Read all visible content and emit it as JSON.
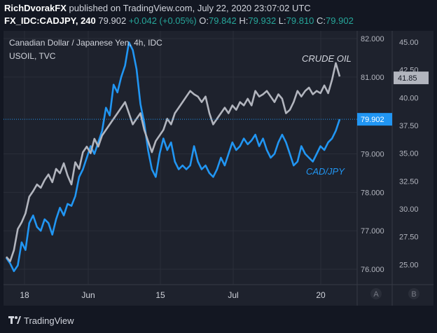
{
  "header": {
    "author": "RichDvorakFX",
    "published_text": "published on TradingView.com, July 22, 2020 23:07:02 UTC",
    "symbol": "FX_IDC:CADJPY, 240",
    "last": "79.902",
    "change": "+0.042 (+0.05%)",
    "o_label": "O:",
    "o_value": "79.842",
    "h_label": "H:",
    "h_value": "79.932",
    "l_label": "L:",
    "l_value": "79.810",
    "c_label": "C:",
    "c_value": "79.902"
  },
  "legend": {
    "main": "Canadian Dollar / Japanese Yen, 4h, IDC",
    "overlay": "USOIL, TVC"
  },
  "footer": {
    "brand": "TradingView"
  },
  "colors": {
    "background": "#1e222d",
    "cadjpy": "#2196f3",
    "oil": "#b2b5be",
    "grid": "#2a2e39"
  },
  "chart_data": {
    "type": "line",
    "x_ticks": [
      "18",
      "Jun",
      "15",
      "Jul",
      "20"
    ],
    "y_right_ticks": [
      "82.000",
      "81.000",
      "79.000",
      "78.000",
      "77.000",
      "76.000"
    ],
    "y_left_ticks": [
      "45.00",
      "42.50",
      "40.00",
      "37.50",
      "35.00",
      "32.50",
      "30.00",
      "27.50",
      "25.00"
    ],
    "ylim_cadjpy": [
      75.6,
      82.2
    ],
    "ylim_oil": [
      23.2,
      46.0
    ],
    "annotations": [
      "CRUDE OIL",
      "CAD/JPY"
    ],
    "price_labels": {
      "cadjpy": "79.902",
      "oil": "41.85"
    },
    "scale_buttons": [
      "A",
      "B"
    ],
    "series": [
      {
        "id": "cadjpy",
        "values": [
          76.3,
          76.15,
          75.95,
          76.1,
          76.7,
          76.5,
          77.2,
          77.4,
          77.1,
          77.0,
          77.3,
          77.2,
          76.9,
          77.3,
          77.6,
          77.4,
          77.7,
          77.65,
          77.9,
          78.4,
          78.6,
          78.9,
          79.2,
          79.0,
          79.3,
          79.6,
          80.2,
          80.0,
          80.8,
          80.6,
          81.0,
          81.3,
          81.9,
          81.7,
          81.2,
          80.3,
          79.8,
          79.1,
          78.6,
          78.4,
          79.0,
          79.4,
          79.1,
          79.3,
          78.8,
          78.6,
          78.7,
          78.6,
          78.7,
          79.2,
          78.8,
          78.6,
          78.7,
          78.5,
          78.4,
          78.6,
          78.9,
          78.7,
          79.0,
          79.3,
          79.1,
          79.2,
          79.4,
          79.25,
          79.35,
          79.5,
          79.2,
          79.4,
          79.1,
          78.9,
          79.0,
          79.3,
          79.5,
          79.3,
          79.0,
          78.7,
          78.8,
          79.2,
          79.0,
          78.9,
          78.8,
          79.0,
          79.2,
          79.1,
          79.3,
          79.4,
          79.6,
          79.9
        ]
      },
      {
        "id": "oil",
        "values": [
          25.7,
          25.3,
          26.3,
          28.2,
          28.8,
          29.6,
          31.1,
          31.6,
          32.2,
          31.9,
          32.6,
          33.1,
          32.4,
          33.6,
          33.2,
          34.1,
          33.0,
          32.2,
          34.2,
          33.6,
          35.1,
          35.6,
          35.0,
          36.3,
          35.6,
          36.6,
          37.1,
          37.6,
          38.1,
          38.6,
          39.1,
          39.6,
          38.6,
          37.6,
          38.1,
          38.6,
          37.1,
          36.1,
          35.1,
          36.1,
          36.6,
          37.1,
          38.1,
          37.6,
          38.6,
          39.1,
          39.6,
          40.1,
          40.6,
          40.3,
          40.1,
          39.6,
          40.1,
          38.6,
          37.6,
          38.1,
          38.6,
          39.1,
          38.6,
          39.3,
          38.9,
          39.6,
          39.3,
          39.9,
          39.3,
          40.6,
          40.1,
          40.3,
          40.6,
          40.1,
          39.6,
          40.3,
          39.9,
          38.6,
          38.9,
          39.6,
          40.6,
          40.1,
          40.6,
          40.9,
          40.3,
          40.6,
          40.4,
          41.1,
          40.4,
          41.6,
          43.1,
          41.9
        ]
      }
    ]
  }
}
